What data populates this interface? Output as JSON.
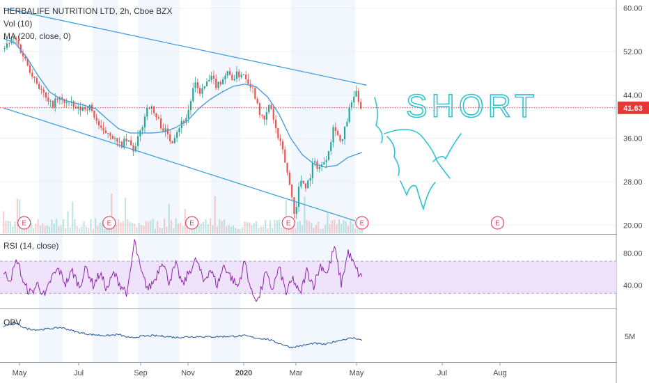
{
  "chart_data": {
    "type": "candlestick",
    "title": "HERBALIFE NUTRITION LTD, 2h, Cboe BZX",
    "indicators": [
      "Vol (10)",
      "MA (200, close, 0)",
      "RSI (14, close)",
      "OBV"
    ],
    "x_labels": [
      "May",
      "Jul",
      "Sep",
      "Nov",
      "2020",
      "Mar",
      "May",
      "Jul",
      "Aug"
    ],
    "price_axis": {
      "ticks": [
        60,
        52,
        44,
        36,
        28,
        20
      ],
      "tick_labels": [
        "60.00",
        "52.00",
        "44.00",
        "36.00",
        "28.00",
        "20.00"
      ],
      "ylim": [
        18.5,
        61.5
      ],
      "current_price": 41.63,
      "current_price_label": "41.63"
    },
    "rsi_axis": {
      "ticks": [
        80,
        40
      ],
      "tick_labels": [
        "80.00",
        "40.00"
      ],
      "band": [
        30,
        70
      ],
      "ylim": [
        12,
        102
      ]
    },
    "obv_axis": {
      "tick_labels": [
        "5M"
      ]
    },
    "price_path": [
      [
        0,
        52.5
      ],
      [
        5,
        54.5
      ],
      [
        10,
        50
      ],
      [
        15,
        46
      ],
      [
        20,
        42
      ],
      [
        24,
        43.2
      ],
      [
        28,
        42.6
      ],
      [
        32,
        41.2
      ],
      [
        37,
        42
      ],
      [
        40,
        39.8
      ],
      [
        43,
        36.8
      ],
      [
        46,
        37.4
      ],
      [
        50,
        34.6
      ],
      [
        54,
        35.5
      ],
      [
        57,
        33.6
      ],
      [
        60,
        37.8
      ],
      [
        63,
        42.5
      ],
      [
        66,
        40.2
      ],
      [
        70,
        37.5
      ],
      [
        73,
        35.5
      ],
      [
        76,
        38
      ],
      [
        80,
        40.2
      ],
      [
        83,
        45.8
      ],
      [
        86,
        44.5
      ],
      [
        90,
        47
      ],
      [
        93,
        45.8
      ],
      [
        97,
        48
      ],
      [
        100,
        47.2
      ],
      [
        104,
        48.2
      ],
      [
        107,
        46.5
      ],
      [
        110,
        43.5
      ],
      [
        113,
        38.6
      ],
      [
        116,
        42.5
      ],
      [
        119,
        36.6
      ],
      [
        122,
        32.8
      ],
      [
        125,
        26.4
      ],
      [
        127,
        21.5
      ],
      [
        129,
        28.6
      ],
      [
        132,
        27.2
      ],
      [
        135,
        31.6
      ],
      [
        138,
        30.5
      ],
      [
        141,
        33.2
      ],
      [
        144,
        38.8
      ],
      [
        147,
        34.6
      ],
      [
        150,
        40.4
      ],
      [
        153,
        44.5
      ],
      [
        156,
        41.63
      ]
    ],
    "ma200_path": [
      [
        0,
        54.4
      ],
      [
        5,
        53.6
      ],
      [
        10,
        51
      ],
      [
        15,
        47.6
      ],
      [
        20,
        44.6
      ],
      [
        25,
        43.2
      ],
      [
        30,
        42.6
      ],
      [
        35,
        42.1
      ],
      [
        40,
        41.5
      ],
      [
        45,
        39.6
      ],
      [
        50,
        37.8
      ],
      [
        55,
        37
      ],
      [
        60,
        37
      ],
      [
        65,
        37
      ],
      [
        70,
        37.2
      ],
      [
        75,
        38
      ],
      [
        80,
        39.2
      ],
      [
        85,
        41.5
      ],
      [
        90,
        43.2
      ],
      [
        95,
        44.5
      ],
      [
        100,
        45.6
      ],
      [
        105,
        46
      ],
      [
        110,
        45.5
      ],
      [
        115,
        43.6
      ],
      [
        120,
        40.4
      ],
      [
        125,
        36
      ],
      [
        130,
        33
      ],
      [
        135,
        31.3
      ],
      [
        140,
        30.7
      ],
      [
        145,
        31
      ],
      [
        150,
        32.5
      ],
      [
        156,
        33.4
      ]
    ],
    "rsi_path": [
      [
        0,
        55
      ],
      [
        3,
        48
      ],
      [
        6,
        72
      ],
      [
        9,
        40
      ],
      [
        12,
        30
      ],
      [
        15,
        42
      ],
      [
        18,
        25
      ],
      [
        21,
        50
      ],
      [
        24,
        60
      ],
      [
        27,
        42
      ],
      [
        30,
        58
      ],
      [
        33,
        38
      ],
      [
        36,
        62
      ],
      [
        39,
        40
      ],
      [
        42,
        55
      ],
      [
        45,
        35
      ],
      [
        48,
        55
      ],
      [
        51,
        40
      ],
      [
        54,
        30
      ],
      [
        57,
        95
      ],
      [
        60,
        55
      ],
      [
        63,
        35
      ],
      [
        66,
        48
      ],
      [
        69,
        72
      ],
      [
        72,
        45
      ],
      [
        75,
        65
      ],
      [
        78,
        40
      ],
      [
        81,
        58
      ],
      [
        84,
        72
      ],
      [
        87,
        45
      ],
      [
        90,
        60
      ],
      [
        93,
        40
      ],
      [
        96,
        65
      ],
      [
        99,
        50
      ],
      [
        102,
        38
      ],
      [
        105,
        70
      ],
      [
        108,
        30
      ],
      [
        111,
        22
      ],
      [
        114,
        55
      ],
      [
        117,
        35
      ],
      [
        120,
        62
      ],
      [
        123,
        30
      ],
      [
        126,
        48
      ],
      [
        129,
        28
      ],
      [
        132,
        58
      ],
      [
        135,
        40
      ],
      [
        138,
        65
      ],
      [
        141,
        55
      ],
      [
        144,
        88
      ],
      [
        147,
        42
      ],
      [
        150,
        82
      ],
      [
        153,
        62
      ],
      [
        156,
        48
      ]
    ],
    "obv_path": [
      [
        0,
        70
      ],
      [
        5,
        82
      ],
      [
        10,
        62
      ],
      [
        15,
        58
      ],
      [
        20,
        62
      ],
      [
        25,
        66
      ],
      [
        28,
        60
      ],
      [
        32,
        50
      ],
      [
        38,
        42
      ],
      [
        45,
        38
      ],
      [
        50,
        42
      ],
      [
        55,
        30
      ],
      [
        60,
        36
      ],
      [
        65,
        38
      ],
      [
        70,
        36
      ],
      [
        75,
        32
      ],
      [
        80,
        34
      ],
      [
        85,
        35
      ],
      [
        90,
        34
      ],
      [
        95,
        35
      ],
      [
        100,
        36
      ],
      [
        105,
        38
      ],
      [
        110,
        30
      ],
      [
        115,
        26
      ],
      [
        120,
        12
      ],
      [
        125,
        -2
      ],
      [
        130,
        4
      ],
      [
        135,
        12
      ],
      [
        140,
        8
      ],
      [
        145,
        20
      ],
      [
        150,
        28
      ],
      [
        153,
        30
      ],
      [
        156,
        22
      ]
    ],
    "channel_lines": [
      {
        "name": "channel-top",
        "from": [
          0,
          60
        ],
        "to": [
          158,
          45.8
        ]
      },
      {
        "name": "channel-bottom",
        "from": [
          0,
          41.6
        ],
        "to": [
          153,
          20.8
        ]
      }
    ],
    "earnings_markers": [
      {
        "x": 9,
        "label": "E"
      },
      {
        "x": 46,
        "label": "E"
      },
      {
        "x": 82,
        "label": "E"
      },
      {
        "x": 124,
        "label": "E"
      },
      {
        "x": 156,
        "label": "E"
      },
      {
        "x": 215,
        "label": "E"
      }
    ],
    "annotation": {
      "text": "SHORT",
      "style": "handwritten"
    },
    "colors": {
      "candle_up": "#26a69a",
      "candle_down": "#ef5350",
      "ma_line": "#4a9fd9",
      "channel": "#40a0e0",
      "rsi_line": "#8e24aa",
      "rsi_band": "#efe2fb",
      "obv_line": "#2f5f9e",
      "current_price": "#e53935",
      "annotation": "#2ec4d0",
      "earnings": "#e0445e"
    }
  }
}
